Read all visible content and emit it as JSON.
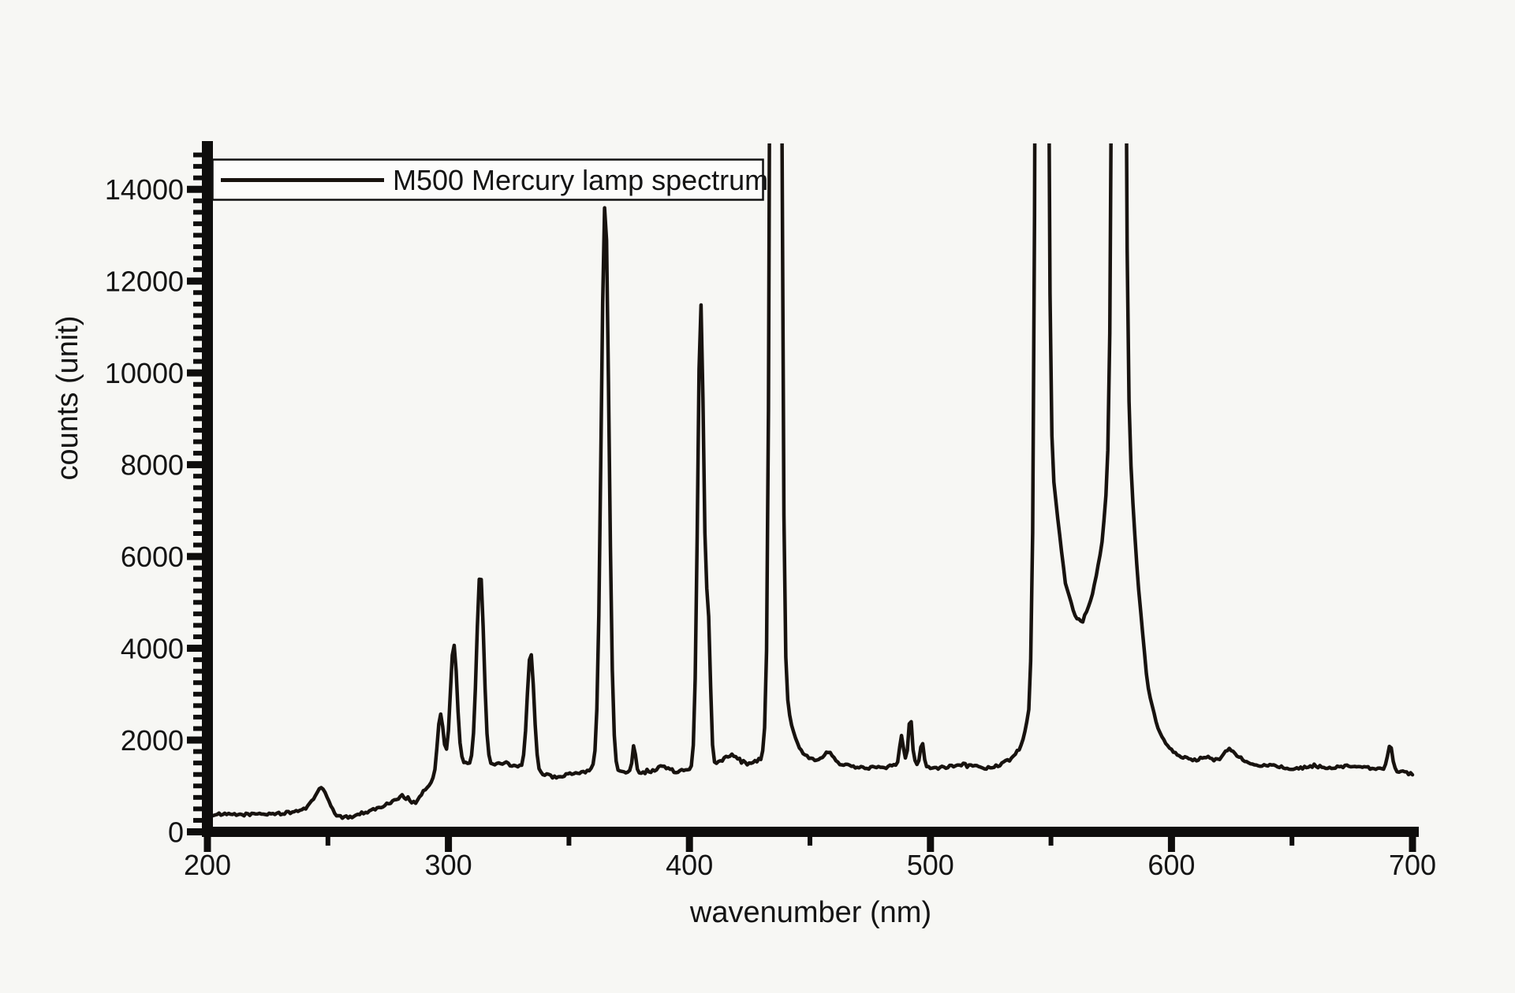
{
  "figure": {
    "background_color": "#f7f7f4",
    "trace_color": "#18130f",
    "axis_color": "#0e0d0c",
    "legend_fill": "#fcfcfb"
  },
  "chart_data": {
    "type": "line",
    "title": "",
    "xlabel": "wavenumber (nm)",
    "ylabel": "counts (unit)",
    "xlim": [
      200,
      700
    ],
    "ylim": [
      0,
      15000
    ],
    "grid": false,
    "legend": {
      "label": "M500 Mercury lamp spectrum",
      "position": "top-left",
      "border": true
    },
    "x_major_ticks": [
      200,
      300,
      400,
      500,
      600,
      700
    ],
    "x_minor_ticks": [
      250,
      350,
      450,
      550,
      650
    ],
    "y_major_ticks": [
      0,
      2000,
      4000,
      6000,
      8000,
      10000,
      12000,
      14000
    ],
    "y_minor_step": 250,
    "y_minor_max": 14750,
    "peaks": [
      {
        "nm": 247.5,
        "counts": 960,
        "width_nm": 6.0,
        "clipped": false
      },
      {
        "nm": 296.7,
        "counts": 2550,
        "width_nm": 3.0,
        "clipped": false
      },
      {
        "nm": 302.2,
        "counts": 4100,
        "width_nm": 3.3,
        "clipped": false
      },
      {
        "nm": 313.2,
        "counts": 5650,
        "width_nm": 3.5,
        "clipped": false
      },
      {
        "nm": 334.1,
        "counts": 3900,
        "width_nm": 3.3,
        "clipped": false
      },
      {
        "nm": 365.0,
        "counts": 13690,
        "width_nm": 3.8,
        "clipped": false
      },
      {
        "nm": 377.0,
        "counts": 1900,
        "width_nm": 1.6,
        "clipped": false
      },
      {
        "nm": 404.7,
        "counts": 11500,
        "width_nm": 3.0,
        "clipped": false
      },
      {
        "nm": 407.8,
        "counts": 4400,
        "width_nm": 2.2,
        "clipped": false
      },
      {
        "nm": 435.8,
        "counts": 15000,
        "width_nm": 3.4,
        "clipped": true
      },
      {
        "nm": 457.9,
        "counts": 1750,
        "width_nm": 4.0,
        "clipped": false
      },
      {
        "nm": 488.0,
        "counts": 2100,
        "width_nm": 1.8,
        "clipped": false
      },
      {
        "nm": 491.6,
        "counts": 2500,
        "width_nm": 1.8,
        "clipped": false
      },
      {
        "nm": 496.5,
        "counts": 1950,
        "width_nm": 1.8,
        "clipped": false
      },
      {
        "nm": 546.1,
        "counts": 15000,
        "width_nm": 3.5,
        "clipped": true
      },
      {
        "nm": 578.1,
        "counts": 15000,
        "width_nm": 3.5,
        "clipped": true
      },
      {
        "nm": 623.4,
        "counts": 1800,
        "width_nm": 3.5,
        "clipped": false
      },
      {
        "nm": 690.7,
        "counts": 1900,
        "width_nm": 2.2,
        "clipped": false
      }
    ],
    "baseline_envelope": [
      [
        200,
        370
      ],
      [
        206,
        378
      ],
      [
        212,
        372
      ],
      [
        218,
        385
      ],
      [
        224,
        390
      ],
      [
        230,
        400
      ],
      [
        235,
        420
      ],
      [
        240,
        500
      ],
      [
        244,
        580
      ],
      [
        247,
        620
      ],
      [
        250,
        480
      ],
      [
        253,
        360
      ],
      [
        256,
        310
      ],
      [
        259,
        325
      ],
      [
        263,
        385
      ],
      [
        267,
        455
      ],
      [
        270,
        505
      ],
      [
        273,
        560
      ],
      [
        276,
        645
      ],
      [
        279,
        730
      ],
      [
        281,
        790
      ],
      [
        283,
        720
      ],
      [
        286,
        620
      ],
      [
        288,
        760
      ],
      [
        290,
        910
      ],
      [
        292,
        1010
      ],
      [
        294,
        1100
      ],
      [
        297,
        1200
      ],
      [
        300,
        1350
      ],
      [
        303,
        1400
      ],
      [
        306,
        1500
      ],
      [
        309,
        1450
      ],
      [
        313,
        1400
      ],
      [
        317,
        1430
      ],
      [
        320,
        1460
      ],
      [
        323,
        1510
      ],
      [
        326,
        1460
      ],
      [
        329,
        1430
      ],
      [
        332,
        1360
      ],
      [
        336,
        1300
      ],
      [
        340,
        1250
      ],
      [
        344,
        1190
      ],
      [
        348,
        1230
      ],
      [
        352,
        1270
      ],
      [
        356,
        1310
      ],
      [
        360,
        1350
      ],
      [
        365,
        1300
      ],
      [
        369,
        1330
      ],
      [
        373,
        1300
      ],
      [
        377,
        1310
      ],
      [
        381,
        1290
      ],
      [
        385,
        1330
      ],
      [
        388,
        1430
      ],
      [
        391,
        1390
      ],
      [
        394,
        1310
      ],
      [
        397,
        1330
      ],
      [
        400,
        1340
      ],
      [
        405,
        1350
      ],
      [
        409,
        1390
      ],
      [
        412,
        1510
      ],
      [
        415,
        1610
      ],
      [
        418,
        1690
      ],
      [
        421,
        1570
      ],
      [
        424,
        1510
      ],
      [
        427,
        1530
      ],
      [
        430,
        1610
      ],
      [
        433,
        2300
      ],
      [
        436,
        3500
      ],
      [
        439,
        3200
      ],
      [
        442,
        2400
      ],
      [
        445,
        1900
      ],
      [
        448,
        1660
      ],
      [
        451,
        1590
      ],
      [
        455,
        1570
      ],
      [
        458,
        1530
      ],
      [
        461,
        1510
      ],
      [
        465,
        1450
      ],
      [
        469,
        1410
      ],
      [
        473,
        1390
      ],
      [
        477,
        1410
      ],
      [
        481,
        1430
      ],
      [
        485,
        1460
      ],
      [
        489,
        1490
      ],
      [
        492,
        1510
      ],
      [
        495,
        1460
      ],
      [
        498,
        1410
      ],
      [
        502,
        1390
      ],
      [
        506,
        1410
      ],
      [
        510,
        1450
      ],
      [
        514,
        1470
      ],
      [
        518,
        1440
      ],
      [
        522,
        1390
      ],
      [
        526,
        1410
      ],
      [
        530,
        1490
      ],
      [
        534,
        1610
      ],
      [
        538,
        1900
      ],
      [
        541,
        2600
      ],
      [
        544,
        5200
      ],
      [
        548,
        8500
      ],
      [
        552,
        7200
      ],
      [
        556,
        5400
      ],
      [
        560,
        4700
      ],
      [
        563,
        4550
      ],
      [
        567,
        5100
      ],
      [
        571,
        6200
      ],
      [
        575,
        8500
      ],
      [
        578,
        10500
      ],
      [
        582,
        8800
      ],
      [
        586,
        5500
      ],
      [
        590,
        3200
      ],
      [
        594,
        2300
      ],
      [
        598,
        1900
      ],
      [
        602,
        1700
      ],
      [
        606,
        1600
      ],
      [
        610,
        1560
      ],
      [
        614,
        1630
      ],
      [
        618,
        1560
      ],
      [
        622,
        1610
      ],
      [
        626,
        1710
      ],
      [
        630,
        1560
      ],
      [
        634,
        1480
      ],
      [
        638,
        1440
      ],
      [
        642,
        1490
      ],
      [
        646,
        1400
      ],
      [
        650,
        1350
      ],
      [
        654,
        1390
      ],
      [
        658,
        1410
      ],
      [
        662,
        1430
      ],
      [
        666,
        1390
      ],
      [
        670,
        1410
      ],
      [
        674,
        1430
      ],
      [
        678,
        1410
      ],
      [
        682,
        1390
      ],
      [
        686,
        1360
      ],
      [
        690,
        1390
      ],
      [
        694,
        1320
      ],
      [
        698,
        1280
      ],
      [
        700,
        1260
      ]
    ],
    "noise_amplitude_counts": 32,
    "sample_step_nm": 0.8
  }
}
